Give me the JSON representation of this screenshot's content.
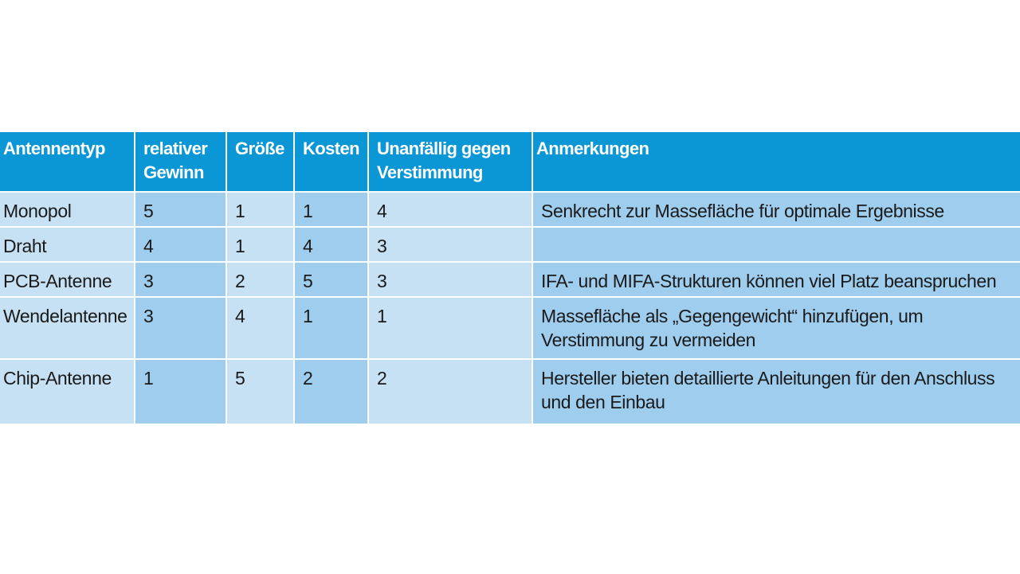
{
  "table": {
    "headers": [
      "Antennentyp",
      "relativer Gewinn",
      "Größe",
      "Kosten",
      "Unanfällig gegen Verstimmung",
      "Anmerkungen"
    ],
    "rows": [
      [
        "Monopol",
        "5",
        "1",
        "1",
        "4",
        "Senkrecht zur Massefläche für optimale Ergebnisse"
      ],
      [
        "Draht",
        "4",
        "1",
        "4",
        "3",
        ""
      ],
      [
        "PCB-Antenne",
        "3",
        "2",
        "5",
        "3",
        "IFA- und MIFA-Strukturen können viel Platz beanspruchen"
      ],
      [
        "Wendelantenne",
        "3",
        "4",
        "1",
        "1",
        "Massefläche als „Gegengewicht“ hinzufügen, um Verstimmung zu vermeiden"
      ],
      [
        "Chip-Antenne",
        "1",
        "5",
        "2",
        "2",
        "Hersteller bieten detaillierte Anleitungen für den Anschluss und den Einbau"
      ]
    ]
  },
  "colors": {
    "header_bg": "#0b96d6",
    "light_cell": "#c7e1f4",
    "dark_cell": "#9fcdee"
  }
}
